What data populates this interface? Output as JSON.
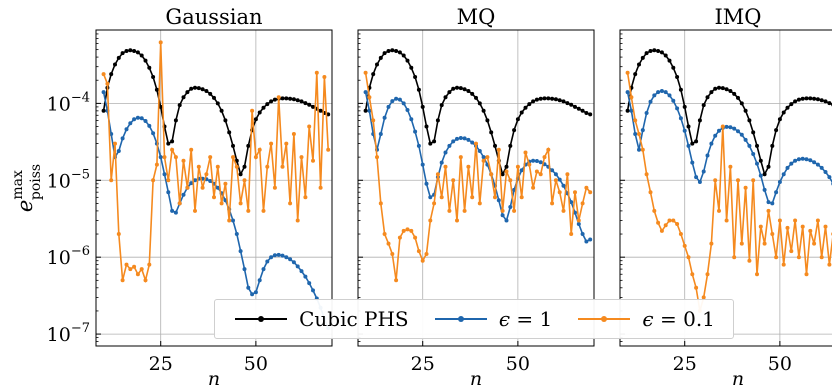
{
  "chart_data": [
    {
      "type": "line",
      "title": "Gaussian",
      "xlabel": "n",
      "ylabel": "e_poiss^max",
      "ylabel_main": "e",
      "ylabel_sub": "poiss",
      "ylabel_sup": "max",
      "xlim": [
        8,
        70
      ],
      "ylim": [
        7e-08,
        0.0009
      ],
      "yscale": "log",
      "x_ticks": [
        25,
        50
      ],
      "y_ticks_mantissa": "10",
      "y_ticks": [
        -4,
        -5,
        -6,
        -7
      ],
      "grid": true,
      "x_start": 10,
      "series": [
        {
          "name": "Cubic PHS",
          "color": "#000000",
          "values": [
            8e-05,
            0.00016,
            0.00024,
            0.00032,
            0.00039,
            0.00045,
            0.00048,
            0.00049,
            0.00048,
            0.00046,
            0.00042,
            0.00036,
            0.00029,
            0.00022,
            0.00015,
            9e-05,
            5e-05,
            3e-05,
            3.2e-05,
            6e-05,
            9.5e-05,
            0.00012,
            0.00014,
            0.000155,
            0.00016,
            0.000158,
            0.000153,
            0.000145,
            0.000133,
            0.000118,
            0.0001,
            8e-05,
            6e-05,
            4.2e-05,
            2.8e-05,
            1.8e-05,
            1.2e-05,
            1.5e-05,
            2.8e-05,
            4.5e-05,
            6.2e-05,
            7.6e-05,
            8.8e-05,
            9.8e-05,
            0.000106,
            0.000112,
            0.000115,
            0.000116,
            0.000116,
            0.000115,
            0.000113,
            0.00011,
            0.000106,
            0.000101,
            9.6e-05,
            9e-05,
            8.5e-05,
            8e-05,
            7.5e-05,
            7.2e-05
          ]
        },
        {
          "name": "ϵ = 1",
          "color": "#1f66ad",
          "values": [
            0.00014,
            8e-05,
            4e-05,
            2e-05,
            2.4e-05,
            3.5e-05,
            4.6e-05,
            5.5e-05,
            6.2e-05,
            6.5e-05,
            6.4e-05,
            5.9e-05,
            5.1e-05,
            4.1e-05,
            3e-05,
            2e-05,
            1.2e-05,
            7e-06,
            4e-06,
            3.8e-06,
            5e-06,
            6.5e-06,
            8e-06,
            9.2e-06,
            1e-05,
            1.05e-05,
            1.05e-05,
            1.03e-05,
            9.8e-06,
            9e-06,
            8e-06,
            6.8e-06,
            5.5e-06,
            4.2e-06,
            3e-06,
            2e-06,
            1.2e-06,
            7e-07,
            4e-07,
            3.3e-07,
            3.5e-07,
            5e-07,
            7e-07,
            8.8e-07,
            1e-06,
            1.06e-06,
            1.07e-06,
            1.05e-06,
            1e-06,
            9.4e-07,
            8.6e-07,
            7.6e-07,
            6.6e-07,
            5.6e-07,
            4.6e-07,
            3.7e-07,
            2.9e-07,
            2.2e-07,
            1.6e-07,
            1.2e-07
          ]
        },
        {
          "name": "ϵ = 0.1",
          "color": "#f58a1f",
          "values": [
            0.00024,
            0.00018,
            1e-05,
            3e-05,
            2e-06,
            5e-07,
            8e-07,
            7e-07,
            7.5e-07,
            6e-07,
            7e-07,
            5e-07,
            8e-07,
            1e-05,
            1.6e-05,
            0.00062,
            2e-05,
            1e-05,
            2.5e-05,
            2e-05,
            5e-06,
            1.8e-05,
            8e-06,
            2.5e-05,
            4e-06,
            1.5e-05,
            8e-06,
            1.2e-05,
            2e-05,
            6e-06,
            1.5e-05,
            5e-06,
            9e-06,
            3e-06,
            2e-05,
            1.5e-05,
            5e-06,
            1e-05,
            4e-06,
            8e-05,
            2e-05,
            2.5e-05,
            4e-06,
            1.5e-05,
            3e-05,
            8e-06,
            0.00012,
            1.5e-05,
            3e-05,
            5e-06,
            4e-05,
            3e-06,
            2e-05,
            6e-06,
            5e-05,
            1.8e-05,
            0.00025,
            8e-06,
            0.00022,
            2.5e-05
          ]
        }
      ]
    },
    {
      "type": "line",
      "title": "MQ",
      "xlabel": "n",
      "xlim": [
        8,
        70
      ],
      "ylim": [
        7e-08,
        0.0009
      ],
      "yscale": "log",
      "x_ticks": [
        25,
        50
      ],
      "grid": true,
      "x_start": 10,
      "series": [
        {
          "name": "Cubic PHS",
          "color": "#000000",
          "values": [
            8e-05,
            0.00016,
            0.00024,
            0.00032,
            0.00039,
            0.00045,
            0.00048,
            0.00049,
            0.00048,
            0.00046,
            0.00042,
            0.00036,
            0.00029,
            0.00022,
            0.00015,
            9e-05,
            5e-05,
            3e-05,
            3.2e-05,
            6e-05,
            9.5e-05,
            0.00012,
            0.00014,
            0.000155,
            0.00016,
            0.000158,
            0.000153,
            0.000145,
            0.000133,
            0.000118,
            0.0001,
            8e-05,
            6e-05,
            4.2e-05,
            2.8e-05,
            1.8e-05,
            1.2e-05,
            1.5e-05,
            2.8e-05,
            4.5e-05,
            6.2e-05,
            7.6e-05,
            8.8e-05,
            9.8e-05,
            0.000106,
            0.000112,
            0.000115,
            0.000116,
            0.000116,
            0.000115,
            0.000113,
            0.00011,
            0.000106,
            0.000101,
            9.6e-05,
            9e-05,
            8.5e-05,
            8e-05,
            7.5e-05,
            7.2e-05
          ]
        },
        {
          "name": "ϵ = 1",
          "color": "#1f66ad",
          "values": [
            0.00014,
            8e-05,
            4e-05,
            2.5e-05,
            4e-05,
            6.5e-05,
            9e-05,
            0.000107,
            0.000115,
            0.000112,
            0.0001,
            8.2e-05,
            6.2e-05,
            4.3e-05,
            2.8e-05,
            1.6e-05,
            9e-06,
            6e-06,
            6.5e-06,
            1.1e-05,
            1.7e-05,
            2.3e-05,
            2.8e-05,
            3.2e-05,
            3.45e-05,
            3.55e-05,
            3.5e-05,
            3.35e-05,
            3.1e-05,
            2.8e-05,
            2.4e-05,
            2e-05,
            1.6e-05,
            1.2e-05,
            8.5e-06,
            5.5e-06,
            3.5e-06,
            3e-06,
            4.5e-06,
            7.5e-06,
            1.05e-05,
            1.35e-05,
            1.6e-05,
            1.75e-05,
            1.8e-05,
            1.78e-05,
            1.72e-05,
            1.62e-05,
            1.5e-05,
            1.35e-05,
            1.2e-05,
            1.02e-05,
            8.5e-06,
            6.8e-06,
            5.2e-06,
            3.8e-06,
            2.7e-06,
            2e-06,
            1.6e-06,
            1.7e-06
          ]
        },
        {
          "name": "ϵ = 0.1",
          "color": "#f58a1f",
          "values": [
            0.00025,
            0.00012,
            6e-05,
            2e-05,
            5e-06,
            2e-06,
            1.5e-06,
            1.1e-06,
            5e-07,
            1.8e-06,
            2.2e-06,
            2.3e-06,
            2.2e-06,
            1.8e-06,
            1.2e-06,
            9e-07,
            1.1e-06,
            3e-06,
            5e-06,
            1.2e-05,
            6e-06,
            1.5e-05,
            4e-06,
            1e-05,
            3e-06,
            2e-05,
            4e-06,
            1.5e-05,
            6e-06,
            3e-05,
            5e-06,
            1.8e-05,
            2e-05,
            1.2e-05,
            6e-06,
            2.5e-05,
            4e-06,
            1.3e-05,
            1e-05,
            4e-06,
            1.5e-05,
            6e-06,
            2.3e-05,
            1.6e-05,
            8e-06,
            1.3e-05,
            1.2e-05,
            2e-05,
            2.5e-05,
            5e-06,
            1e-05,
            7e-06,
            4e-06,
            1.2e-05,
            2e-06,
            7e-06,
            3e-06,
            5e-06,
            8e-06,
            7e-06
          ]
        }
      ]
    },
    {
      "type": "line",
      "title": "IMQ",
      "xlabel": "n",
      "xlim": [
        8,
        70
      ],
      "ylim": [
        7e-08,
        0.0009
      ],
      "yscale": "log",
      "x_ticks": [
        25,
        50
      ],
      "grid": true,
      "x_start": 10,
      "series": [
        {
          "name": "Cubic PHS",
          "color": "#000000",
          "values": [
            8e-05,
            0.00016,
            0.00024,
            0.00032,
            0.00039,
            0.00045,
            0.00048,
            0.00049,
            0.00048,
            0.00046,
            0.00042,
            0.00036,
            0.00029,
            0.00022,
            0.00015,
            9e-05,
            5e-05,
            3e-05,
            3.2e-05,
            6e-05,
            9.5e-05,
            0.00012,
            0.00014,
            0.000155,
            0.00016,
            0.000158,
            0.000153,
            0.000145,
            0.000133,
            0.000118,
            0.0001,
            8e-05,
            6e-05,
            4.2e-05,
            2.8e-05,
            1.8e-05,
            1.2e-05,
            1.5e-05,
            2.8e-05,
            4.5e-05,
            6.2e-05,
            7.6e-05,
            8.8e-05,
            9.8e-05,
            0.000106,
            0.000112,
            0.000115,
            0.000116,
            0.000116,
            0.000115,
            0.000113,
            0.00011,
            0.000106,
            0.000101,
            9.6e-05,
            9e-05,
            8.5e-05,
            8e-05,
            7.5e-05,
            7.2e-05
          ]
        },
        {
          "name": "ϵ = 1",
          "color": "#1f66ad",
          "values": [
            0.00014,
            8e-05,
            4e-05,
            2.5e-05,
            4.5e-05,
            7.5e-05,
            0.000105,
            0.000127,
            0.00014,
            0.000145,
            0.00014,
            0.000127,
            0.000108,
            8.6e-05,
            6.4e-05,
            4.4e-05,
            2.8e-05,
            1.7e-05,
            1.1e-05,
            9.5e-06,
            1.3e-05,
            2.1e-05,
            3e-05,
            3.8e-05,
            4.4e-05,
            4.8e-05,
            4.95e-05,
            4.9e-05,
            4.7e-05,
            4.35e-05,
            3.9e-05,
            3.35e-05,
            2.8e-05,
            2.2e-05,
            1.65e-05,
            1.15e-05,
            7.5e-06,
            5.2e-06,
            5e-06,
            7e-06,
            9.5e-06,
            1.2e-05,
            1.45e-05,
            1.65e-05,
            1.8e-05,
            1.88e-05,
            1.9e-05,
            1.88e-05,
            1.82e-05,
            1.72e-05,
            1.6e-05,
            1.45e-05,
            1.28e-05,
            1.1e-05,
            9e-06,
            7.2e-06,
            5.6e-06,
            4.2e-06,
            3e-06,
            2.2e-06
          ]
        },
        {
          "name": "ϵ = 0.1",
          "color": "#f58a1f",
          "values": [
            0.00025,
            0.00012,
            6e-05,
            4e-05,
            2.5e-05,
            1.2e-05,
            7e-06,
            4e-06,
            2.8e-06,
            2.2e-06,
            2.6e-06,
            3e-06,
            3e-06,
            2.7e-06,
            2e-06,
            1.4e-06,
            1e-06,
            6e-07,
            4e-07,
            2e-07,
            3e-07,
            6e-07,
            1.5e-06,
            1e-05,
            4e-06,
            5e-05,
            3e-06,
            1.5e-05,
            1e-06,
            1e-05,
            1.5e-06,
            8e-06,
            9e-07,
            1e-05,
            6e-07,
            2.5e-06,
            1.5e-06,
            4e-06,
            2e-06,
            1e-06,
            3e-06,
            8e-07,
            2.4e-06,
            1.2e-06,
            3e-06,
            1e-06,
            2.5e-06,
            6e-07,
            2.2e-06,
            1.5e-06,
            3e-06,
            1e-06,
            2.5e-06,
            8e-07,
            2e-06,
            1.2e-06,
            3e-06,
            1.6e-06,
            4e-06,
            2e-06
          ]
        }
      ]
    }
  ],
  "legend": {
    "placement": "bottom-center",
    "entries": [
      {
        "label": "Cubic PHS",
        "color": "#000000"
      },
      {
        "label_prefix": "ϵ",
        "label_suffix": " = 1",
        "color": "#1f66ad"
      },
      {
        "label_prefix": "ϵ",
        "label_suffix": " = 0.1",
        "color": "#f58a1f"
      }
    ]
  }
}
